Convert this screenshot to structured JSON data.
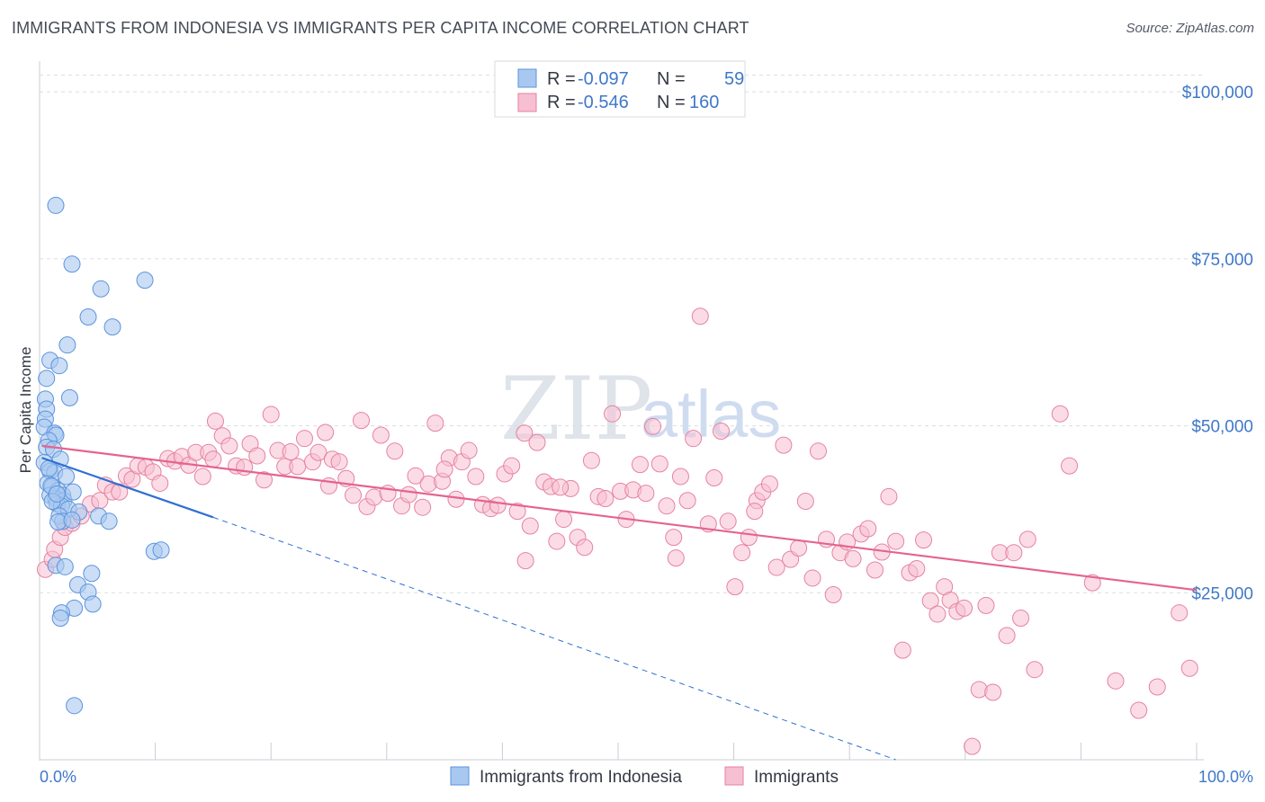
{
  "header": {
    "title": "IMMIGRANTS FROM INDONESIA VS IMMIGRANTS PER CAPITA INCOME CORRELATION CHART",
    "source": "Source: ZipAtlas.com"
  },
  "watermark": {
    "zip": "ZIP",
    "atlas": "atlas"
  },
  "legend": {
    "rows": [
      {
        "r_label": "R =",
        "r_value": "-0.097",
        "n_label": "N =",
        "n_value": "59"
      },
      {
        "r_label": "R =",
        "r_value": "-0.546",
        "n_label": "N =",
        "n_value": "160"
      }
    ]
  },
  "colors": {
    "blue_fill": "#a9c8f0",
    "blue_stroke": "#5b93dc",
    "blue_line": "#2f6fd3",
    "pink_fill": "#f7bfd2",
    "pink_stroke": "#e6829f",
    "pink_line": "#e4648e",
    "grid": "#d9dde3",
    "tick_text": "#3f78c9"
  },
  "chart_data": {
    "type": "scatter",
    "title": "IMMIGRANTS FROM INDONESIA VS IMMIGRANTS PER CAPITA INCOME CORRELATION CHART",
    "xlabel": "",
    "ylabel": "Per Capita Income",
    "xlim": [
      0,
      100
    ],
    "ylim": [
      0,
      105000
    ],
    "x_tick_labels": [
      "0.0%",
      "100.0%"
    ],
    "y_ticks": [
      25000,
      50000,
      75000,
      100000
    ],
    "y_tick_labels": [
      "$25,000",
      "$50,000",
      "$75,000",
      "$100,000"
    ],
    "series": [
      {
        "name": "Immigrants from Indonesia",
        "r": -0.097,
        "n": 59,
        "trend": {
          "x0": 0.2,
          "y0": 45200,
          "x1": 15,
          "y1": 36300,
          "dash_to_x": 74,
          "dash_to_y": 0
        },
        "points": [
          [
            1.4,
            83000
          ],
          [
            2.8,
            74200
          ],
          [
            5.3,
            70500
          ],
          [
            9.1,
            71800
          ],
          [
            4.2,
            66300
          ],
          [
            6.3,
            64800
          ],
          [
            2.4,
            62100
          ],
          [
            0.9,
            59800
          ],
          [
            1.7,
            59000
          ],
          [
            0.6,
            57100
          ],
          [
            0.5,
            54000
          ],
          [
            2.6,
            54200
          ],
          [
            0.6,
            52500
          ],
          [
            0.5,
            51000
          ],
          [
            0.4,
            49800
          ],
          [
            1.3,
            48900
          ],
          [
            1.4,
            48600
          ],
          [
            0.8,
            47800
          ],
          [
            0.6,
            46800
          ],
          [
            1.2,
            46500
          ],
          [
            1.8,
            45000
          ],
          [
            0.4,
            44500
          ],
          [
            0.9,
            43200
          ],
          [
            1.3,
            43000
          ],
          [
            0.7,
            41400
          ],
          [
            1.1,
            40900
          ],
          [
            1.6,
            40300
          ],
          [
            2.0,
            39600
          ],
          [
            0.9,
            39600
          ],
          [
            1.4,
            39100
          ],
          [
            2.1,
            38800
          ],
          [
            1.5,
            38300
          ],
          [
            1.9,
            38000
          ],
          [
            1.1,
            38700
          ],
          [
            2.5,
            37500
          ],
          [
            3.4,
            37100
          ],
          [
            1.7,
            36500
          ],
          [
            5.1,
            36500
          ],
          [
            2.0,
            35700
          ],
          [
            1.6,
            35600
          ],
          [
            2.8,
            35900
          ],
          [
            6.0,
            35700
          ],
          [
            9.9,
            31200
          ],
          [
            10.5,
            31400
          ],
          [
            1.4,
            29100
          ],
          [
            2.2,
            28900
          ],
          [
            4.5,
            27900
          ],
          [
            3.3,
            26200
          ],
          [
            4.2,
            25100
          ],
          [
            4.6,
            23300
          ],
          [
            3.0,
            22700
          ],
          [
            1.9,
            22000
          ],
          [
            1.8,
            21200
          ],
          [
            3.0,
            8100
          ],
          [
            1.0,
            41000
          ],
          [
            2.3,
            42400
          ],
          [
            0.8,
            43600
          ],
          [
            1.5,
            39800
          ],
          [
            2.9,
            40100
          ]
        ]
      },
      {
        "name": "Immigrants",
        "r": -0.546,
        "n": 160,
        "trend": {
          "x0": 0.2,
          "y0": 47000,
          "x1": 100,
          "y1": 25400
        },
        "points": [
          [
            0.5,
            28500
          ],
          [
            1.1,
            30000
          ],
          [
            1.3,
            31500
          ],
          [
            1.8,
            33300
          ],
          [
            2.2,
            34800
          ],
          [
            2.8,
            35400
          ],
          [
            3.6,
            36500
          ],
          [
            4.4,
            38300
          ],
          [
            5.2,
            38800
          ],
          [
            5.7,
            41100
          ],
          [
            6.3,
            40100
          ],
          [
            6.9,
            40100
          ],
          [
            7.5,
            42500
          ],
          [
            8.0,
            42000
          ],
          [
            8.5,
            44000
          ],
          [
            9.2,
            43800
          ],
          [
            9.8,
            43100
          ],
          [
            10.4,
            41400
          ],
          [
            11.1,
            45100
          ],
          [
            11.7,
            44700
          ],
          [
            12.3,
            45400
          ],
          [
            12.9,
            44100
          ],
          [
            13.5,
            46000
          ],
          [
            14.1,
            42400
          ],
          [
            14.6,
            46000
          ],
          [
            15.2,
            50700
          ],
          [
            15.8,
            48500
          ],
          [
            16.4,
            47000
          ],
          [
            17.0,
            44000
          ],
          [
            17.7,
            43800
          ],
          [
            18.2,
            47300
          ],
          [
            18.8,
            45500
          ],
          [
            19.4,
            41900
          ],
          [
            20.0,
            51700
          ],
          [
            20.6,
            46300
          ],
          [
            21.2,
            43900
          ],
          [
            21.7,
            46100
          ],
          [
            22.3,
            43900
          ],
          [
            22.9,
            48100
          ],
          [
            23.6,
            44600
          ],
          [
            24.1,
            46000
          ],
          [
            24.7,
            49000
          ],
          [
            25.3,
            45000
          ],
          [
            25.9,
            44600
          ],
          [
            26.5,
            42100
          ],
          [
            27.1,
            39600
          ],
          [
            27.8,
            50800
          ],
          [
            28.3,
            37900
          ],
          [
            28.9,
            39300
          ],
          [
            29.5,
            48600
          ],
          [
            30.1,
            39900
          ],
          [
            30.7,
            46200
          ],
          [
            31.3,
            38000
          ],
          [
            31.9,
            39700
          ],
          [
            32.5,
            42500
          ],
          [
            33.1,
            37800
          ],
          [
            33.6,
            41300
          ],
          [
            34.2,
            50400
          ],
          [
            34.8,
            41700
          ],
          [
            35.4,
            45200
          ],
          [
            36.0,
            39000
          ],
          [
            36.5,
            44600
          ],
          [
            37.1,
            46300
          ],
          [
            37.7,
            42400
          ],
          [
            38.3,
            38200
          ],
          [
            39.0,
            37600
          ],
          [
            39.6,
            38100
          ],
          [
            40.2,
            42800
          ],
          [
            40.8,
            44000
          ],
          [
            41.3,
            37200
          ],
          [
            41.9,
            48900
          ],
          [
            42.4,
            35000
          ],
          [
            43.0,
            47500
          ],
          [
            43.6,
            41600
          ],
          [
            44.2,
            40900
          ],
          [
            44.7,
            32700
          ],
          [
            45.3,
            36000
          ],
          [
            45.9,
            40600
          ],
          [
            46.5,
            33300
          ],
          [
            47.1,
            31800
          ],
          [
            47.7,
            44800
          ],
          [
            48.3,
            39400
          ],
          [
            48.9,
            39100
          ],
          [
            49.5,
            51800
          ],
          [
            50.2,
            40200
          ],
          [
            50.7,
            36000
          ],
          [
            51.3,
            40400
          ],
          [
            51.9,
            44200
          ],
          [
            52.4,
            39900
          ],
          [
            53.0,
            49900
          ],
          [
            53.6,
            44300
          ],
          [
            54.2,
            38000
          ],
          [
            54.8,
            33300
          ],
          [
            55.4,
            42400
          ],
          [
            56.0,
            38800
          ],
          [
            56.5,
            48100
          ],
          [
            57.1,
            66400
          ],
          [
            57.8,
            35300
          ],
          [
            58.3,
            42200
          ],
          [
            58.9,
            49200
          ],
          [
            59.5,
            35700
          ],
          [
            60.1,
            25900
          ],
          [
            60.7,
            31000
          ],
          [
            61.3,
            33300
          ],
          [
            62.0,
            38800
          ],
          [
            62.5,
            40100
          ],
          [
            63.1,
            41300
          ],
          [
            63.7,
            28800
          ],
          [
            64.3,
            47100
          ],
          [
            64.9,
            30000
          ],
          [
            65.6,
            31700
          ],
          [
            66.2,
            38700
          ],
          [
            66.8,
            27200
          ],
          [
            67.3,
            46200
          ],
          [
            68.0,
            33000
          ],
          [
            68.6,
            24700
          ],
          [
            69.2,
            31000
          ],
          [
            69.8,
            32600
          ],
          [
            70.3,
            30100
          ],
          [
            71.0,
            33800
          ],
          [
            71.6,
            34600
          ],
          [
            72.2,
            28400
          ],
          [
            72.8,
            31100
          ],
          [
            73.4,
            39400
          ],
          [
            74.0,
            32700
          ],
          [
            74.6,
            16400
          ],
          [
            75.2,
            28000
          ],
          [
            75.8,
            28600
          ],
          [
            76.4,
            32900
          ],
          [
            77.0,
            23800
          ],
          [
            77.6,
            21800
          ],
          [
            78.2,
            25900
          ],
          [
            78.7,
            23900
          ],
          [
            79.3,
            22200
          ],
          [
            79.9,
            22700
          ],
          [
            80.6,
            2000
          ],
          [
            81.2,
            10500
          ],
          [
            81.8,
            23100
          ],
          [
            82.4,
            10100
          ],
          [
            83.0,
            31000
          ],
          [
            83.6,
            18600
          ],
          [
            84.2,
            31000
          ],
          [
            84.8,
            21200
          ],
          [
            85.4,
            33000
          ],
          [
            86.0,
            13500
          ],
          [
            88.2,
            51800
          ],
          [
            89.0,
            44000
          ],
          [
            91.0,
            26500
          ],
          [
            93.0,
            11800
          ],
          [
            95.0,
            7400
          ],
          [
            96.6,
            10900
          ],
          [
            98.5,
            22000
          ],
          [
            99.4,
            13700
          ],
          [
            61.8,
            37200
          ],
          [
            55.0,
            30200
          ],
          [
            45.0,
            40800
          ],
          [
            35.0,
            43500
          ],
          [
            25.0,
            41000
          ],
          [
            15.0,
            45000
          ],
          [
            42.0,
            29800
          ]
        ]
      }
    ]
  },
  "bottom_legend": {
    "items": [
      {
        "label": "Immigrants from Indonesia"
      },
      {
        "label": "Immigrants"
      }
    ]
  }
}
